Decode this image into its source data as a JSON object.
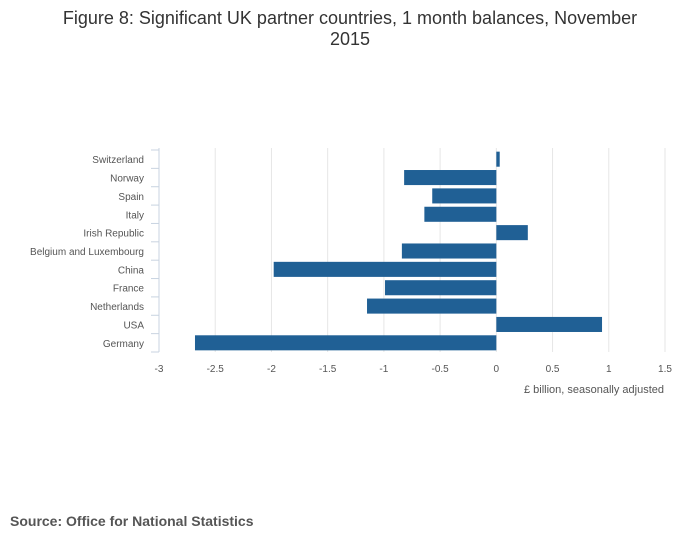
{
  "title_line1": "Figure 8: Significant UK partner countries, 1 month balances, November",
  "title_line2": "2015",
  "source": "Source: Office for National Statistics",
  "chart_data": {
    "type": "bar",
    "orientation": "horizontal",
    "categories": [
      "Switzerland",
      "Norway",
      "Spain",
      "Italy",
      "Irish Republic",
      "Belgium and Luxembourg",
      "China",
      "France",
      "Netherlands",
      "USA",
      "Germany"
    ],
    "values": [
      0.03,
      -0.82,
      -0.57,
      -0.64,
      0.28,
      -0.84,
      -1.98,
      -0.99,
      -1.15,
      0.94,
      -2.68
    ],
    "xlabel": "£ billion, seasonally adjusted",
    "xlim": [
      -3,
      1.5
    ],
    "xticks": [
      -3,
      -2.5,
      -2,
      -1.5,
      -1,
      -0.5,
      0,
      0.5,
      1,
      1.5
    ],
    "xtick_labels": [
      "-3",
      "-2.5",
      "-2",
      "-1.5",
      "-1",
      "-0.5",
      "0",
      "0.5",
      "1",
      "1.5"
    ],
    "grid": true,
    "bar_color": "#206095"
  }
}
